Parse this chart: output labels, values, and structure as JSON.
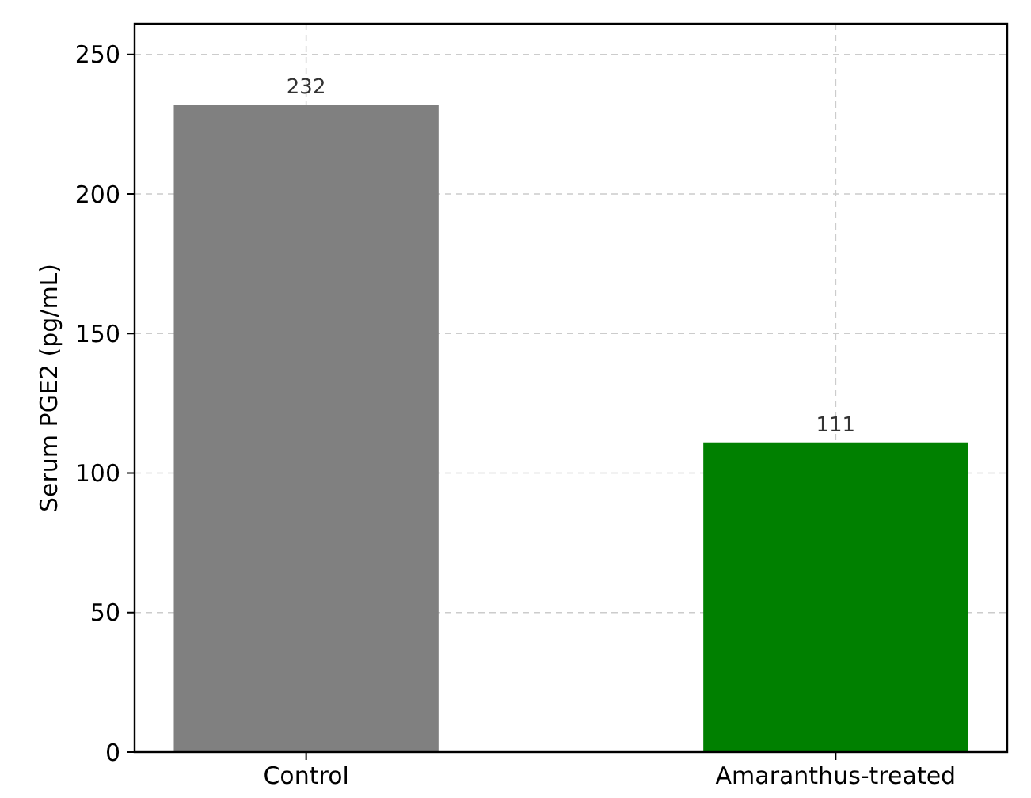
{
  "chart_data": {
    "type": "bar",
    "ylabel": "Serum PGE2 (pg/mL)",
    "categories": [
      "Control",
      "Amaranthus-treated"
    ],
    "values": [
      232,
      111
    ],
    "colors": [
      "#808080",
      "#008000"
    ],
    "ylim": [
      0,
      261
    ],
    "yticks": [
      0,
      50,
      100,
      150,
      200,
      250
    ],
    "grid": true,
    "data_labels": true
  }
}
